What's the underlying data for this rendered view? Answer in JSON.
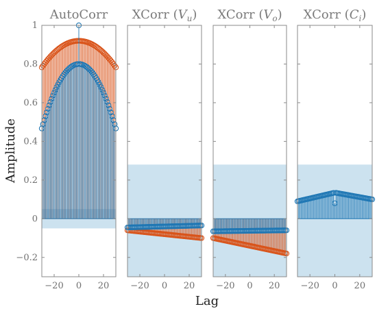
{
  "figure": {
    "ylabel": "Amplitude",
    "xlabel": "Lag",
    "colors": {
      "series_blue": "#1f77b4",
      "series_orange": "#d95319",
      "band_fill": "#c9e0ee",
      "axis": "#8a8a8a"
    }
  },
  "chart_data": [
    {
      "type": "stem",
      "title": "AutoCorr",
      "xlim": [
        -30,
        30
      ],
      "ylim": [
        -0.3,
        1.0
      ],
      "xticks": [
        -20,
        0,
        20
      ],
      "yticks": [
        -0.2,
        0,
        0.2,
        0.4,
        0.6,
        0.8,
        1
      ],
      "ytick_labels": [
        "−0.2",
        "0",
        "0.2",
        "0.4",
        "0.6",
        "0.8",
        "1"
      ],
      "confidence_band": [
        -0.05,
        0.05
      ],
      "series": [
        {
          "color": "orange",
          "center": 0.92,
          "edge": 0.78,
          "spike": null
        },
        {
          "color": "blue",
          "center": 0.8,
          "edge": 0.46,
          "spike": 1.0
        }
      ]
    },
    {
      "type": "stem",
      "title": "XCorr (V_u)",
      "xlim": [
        -30,
        30
      ],
      "ylim": [
        -0.3,
        1.0
      ],
      "xticks": [
        -20,
        0,
        20
      ],
      "confidence_band": [
        -0.3,
        0.28
      ],
      "series": [
        {
          "color": "orange",
          "left": -0.06,
          "right": -0.1
        },
        {
          "color": "blue",
          "left": -0.045,
          "right": -0.035
        }
      ]
    },
    {
      "type": "stem",
      "title": "XCorr (V_o)",
      "xlim": [
        -30,
        30
      ],
      "ylim": [
        -0.3,
        1.0
      ],
      "xticks": [
        -20,
        0,
        20
      ],
      "confidence_band": [
        -0.3,
        0.28
      ],
      "series": [
        {
          "color": "orange",
          "left": -0.1,
          "right": -0.18
        },
        {
          "color": "blue",
          "left": -0.065,
          "right": -0.06
        }
      ]
    },
    {
      "type": "stem",
      "title": "XCorr (C_i)",
      "xlim": [
        -30,
        30
      ],
      "ylim": [
        -0.3,
        1.0
      ],
      "xticks": [
        -20,
        0,
        20
      ],
      "confidence_band": [
        -0.3,
        0.28
      ],
      "series": [
        {
          "color": "blue",
          "left": 0.09,
          "peak": 0.135,
          "right": 0.1,
          "dip_at_zero": 0.08
        }
      ]
    }
  ]
}
